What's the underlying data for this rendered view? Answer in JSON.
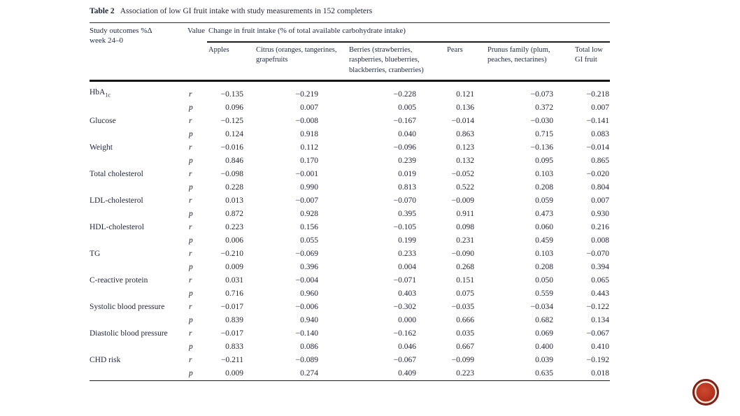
{
  "table": {
    "title_label": "Table 2",
    "title_text": "Association of low GI fruit intake with study measurements in 152 completers",
    "header": {
      "outcome_line1": "Study outcomes %Δ",
      "outcome_line2": "week 24–0",
      "value": "Value",
      "span": "Change in fruit intake (% of total available carbohydrate intake)",
      "fruits": [
        "Apples",
        "Citrus (oranges, tangerines, grapefruits",
        "Berries (strawberries, raspberries, blueberries, blackberries, cranberries)",
        "Pears",
        "Prunus family (plum, peaches, nectarines)",
        "Total low GI fruit"
      ]
    },
    "value_labels": [
      "r",
      "p"
    ],
    "rows": [
      {
        "outcome": "HbA",
        "sub": "1c",
        "r": [
          "−0.135",
          "−0.219",
          "−0.228",
          "0.121",
          "−0.073",
          "−0.218"
        ],
        "p": [
          "0.096",
          "0.007",
          "0.005",
          "0.136",
          "0.372",
          "0.007"
        ]
      },
      {
        "outcome": "Glucose",
        "r": [
          "−0.125",
          "−0.008",
          "−0.167",
          "−0.014",
          "−0.030",
          "−0.141"
        ],
        "p": [
          "0.124",
          "0.918",
          "0.040",
          "0.863",
          "0.715",
          "0.083"
        ]
      },
      {
        "outcome": "Weight",
        "r": [
          "−0.016",
          "0.112",
          "−0.096",
          "0.123",
          "−0.136",
          "−0.014"
        ],
        "p": [
          "0.846",
          "0.170",
          "0.239",
          "0.132",
          "0.095",
          "0.865"
        ]
      },
      {
        "outcome": "Total cholesterol",
        "r": [
          "−0.098",
          "−0.001",
          "0.019",
          "−0.052",
          "0.103",
          "−0.020"
        ],
        "p": [
          "0.228",
          "0.990",
          "0.813",
          "0.522",
          "0.208",
          "0.804"
        ]
      },
      {
        "outcome": "LDL-cholesterol",
        "r": [
          "0.013",
          "−0.007",
          "−0.070",
          "−0.009",
          "0.059",
          "0.007"
        ],
        "p": [
          "0.872",
          "0.928",
          "0.395",
          "0.911",
          "0.473",
          "0.930"
        ]
      },
      {
        "outcome": "HDL-cholesterol",
        "r": [
          "0.223",
          "0.156",
          "−0.105",
          "0.098",
          "0.060",
          "0.216"
        ],
        "p": [
          "0.006",
          "0.055",
          "0.199",
          "0.231",
          "0.459",
          "0.008"
        ]
      },
      {
        "outcome": "TG",
        "r": [
          "−0.210",
          "−0.069",
          "0.233",
          "−0.090",
          "0.103",
          "−0.070"
        ],
        "p": [
          "0.009",
          "0.396",
          "0.004",
          "0.268",
          "0.208",
          "0.394"
        ]
      },
      {
        "outcome": "C-reactive protein",
        "r": [
          "0.031",
          "−0.004",
          "−0.071",
          "0.151",
          "0.050",
          "0.065"
        ],
        "p": [
          "0.716",
          "0.960",
          "0.403",
          "0.075",
          "0.559",
          "0.443"
        ]
      },
      {
        "outcome": "Systolic blood pressure",
        "r": [
          "−0.017",
          "−0.006",
          "−0.302",
          "−0.035",
          "−0.034",
          "−0.122"
        ],
        "p": [
          "0.839",
          "0.940",
          "0.000",
          "0.666",
          "0.682",
          "0.134"
        ]
      },
      {
        "outcome": "Diastolic blood pressure",
        "r": [
          "−0.017",
          "−0.140",
          "−0.162",
          "0.035",
          "0.069",
          "−0.067"
        ],
        "p": [
          "0.833",
          "0.086",
          "0.046",
          "0.667",
          "0.400",
          "0.410"
        ]
      },
      {
        "outcome": "CHD risk",
        "r": [
          "−0.211",
          "−0.089",
          "−0.067",
          "−0.099",
          "0.039",
          "−0.192"
        ],
        "p": [
          "0.009",
          "0.274",
          "0.409",
          "0.223",
          "0.635",
          "0.018"
        ]
      }
    ]
  },
  "logo": {
    "colors": {
      "outer_ring": "#7e2015",
      "inner_ring": "#f2ece0",
      "fill_highlight": "#cd4930",
      "fill_mid": "#b5331f",
      "fill_dark": "#992614"
    }
  }
}
